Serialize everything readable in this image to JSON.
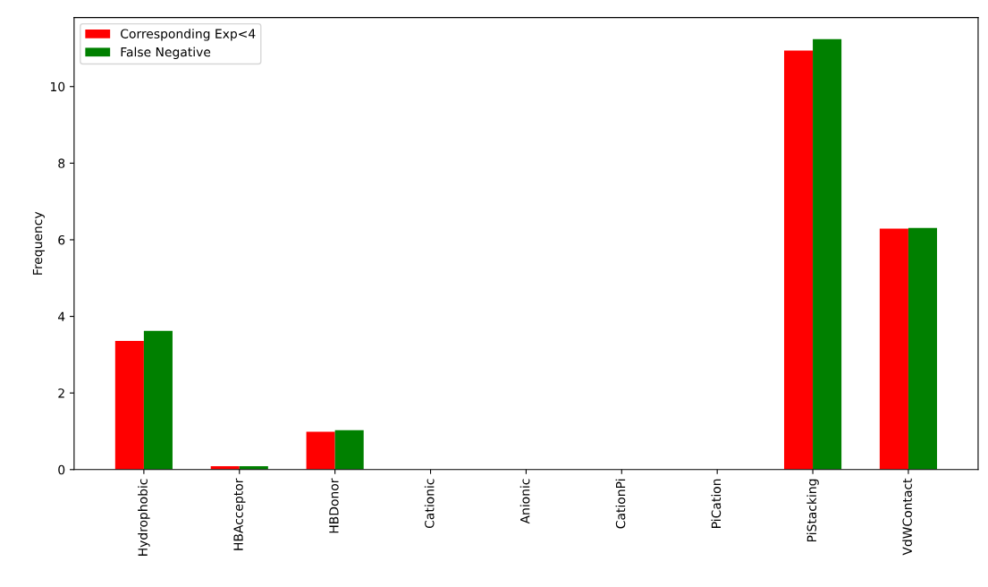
{
  "chart_data": {
    "type": "bar",
    "ylabel": "Frequency",
    "categories": [
      "Hydrophobic",
      "HBAcceptor",
      "HBDonor",
      "Cationic",
      "Anionic",
      "CationPi",
      "PiCation",
      "PiStacking",
      "VdWContact"
    ],
    "series": [
      {
        "name": "Corresponding Exp<4",
        "color": "#ff0000",
        "values": [
          3.36,
          0.09,
          0.99,
          0,
          0,
          null,
          null,
          10.94,
          6.29
        ]
      },
      {
        "name": "False Negative",
        "color": "#008000",
        "values": [
          3.62,
          0.09,
          1.03,
          0,
          0,
          null,
          null,
          11.24,
          6.31
        ]
      }
    ],
    "ylim": [
      0,
      11.8
    ],
    "yticks": [
      0,
      2,
      4,
      6,
      8,
      10
    ],
    "legend": "top left",
    "grid": false
  }
}
